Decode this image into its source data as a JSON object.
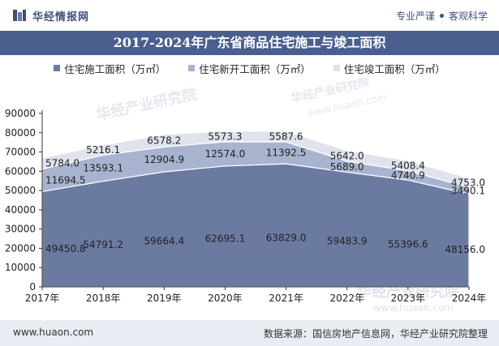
{
  "header": {
    "brand": "华经情报网",
    "tagline_left": "专业严谨",
    "tagline_right": "客观科学"
  },
  "title": "2017-2024年广东省商品住宅施工与竣工面积",
  "watermark": {
    "line1": "华经产业研究院",
    "line2": "www.huaon.com"
  },
  "colors": {
    "series_bottom": "#6b7aa1",
    "series_middle": "#a8b4cf",
    "series_top": "#dfe3ec",
    "title_bar": "#4b5f8f"
  },
  "chart_data": {
    "type": "area",
    "stacked": true,
    "categories": [
      "2017年",
      "2018年",
      "2019年",
      "2020年",
      "2021年",
      "2022年",
      "2023年",
      "2024年"
    ],
    "series": [
      {
        "name": "住宅施工面积（万㎡）",
        "values": [
          49450.8,
          54791.2,
          59664.4,
          62695.1,
          63829.0,
          59483.9,
          55396.6,
          48156.0
        ]
      },
      {
        "name": "住宅新开工面积（万㎡）",
        "values": [
          11694.5,
          13593.1,
          12904.9,
          12574.0,
          11392.5,
          5689.0,
          4740.9,
          3490.1
        ]
      },
      {
        "name": "住宅竣工面积（万㎡）",
        "values": [
          5784.0,
          5216.1,
          6578.2,
          5573.3,
          5587.6,
          5642.0,
          5408.4,
          4753.0
        ]
      }
    ],
    "ylim": [
      0,
      90000
    ],
    "yticks": [
      0,
      10000,
      20000,
      30000,
      40000,
      50000,
      60000,
      70000,
      80000,
      90000
    ],
    "grid": false,
    "legend_position": "top"
  },
  "footer": {
    "website": "www.huaon.com",
    "source": "数据来源：国信房地产信息网，华经产业研究院整理"
  }
}
